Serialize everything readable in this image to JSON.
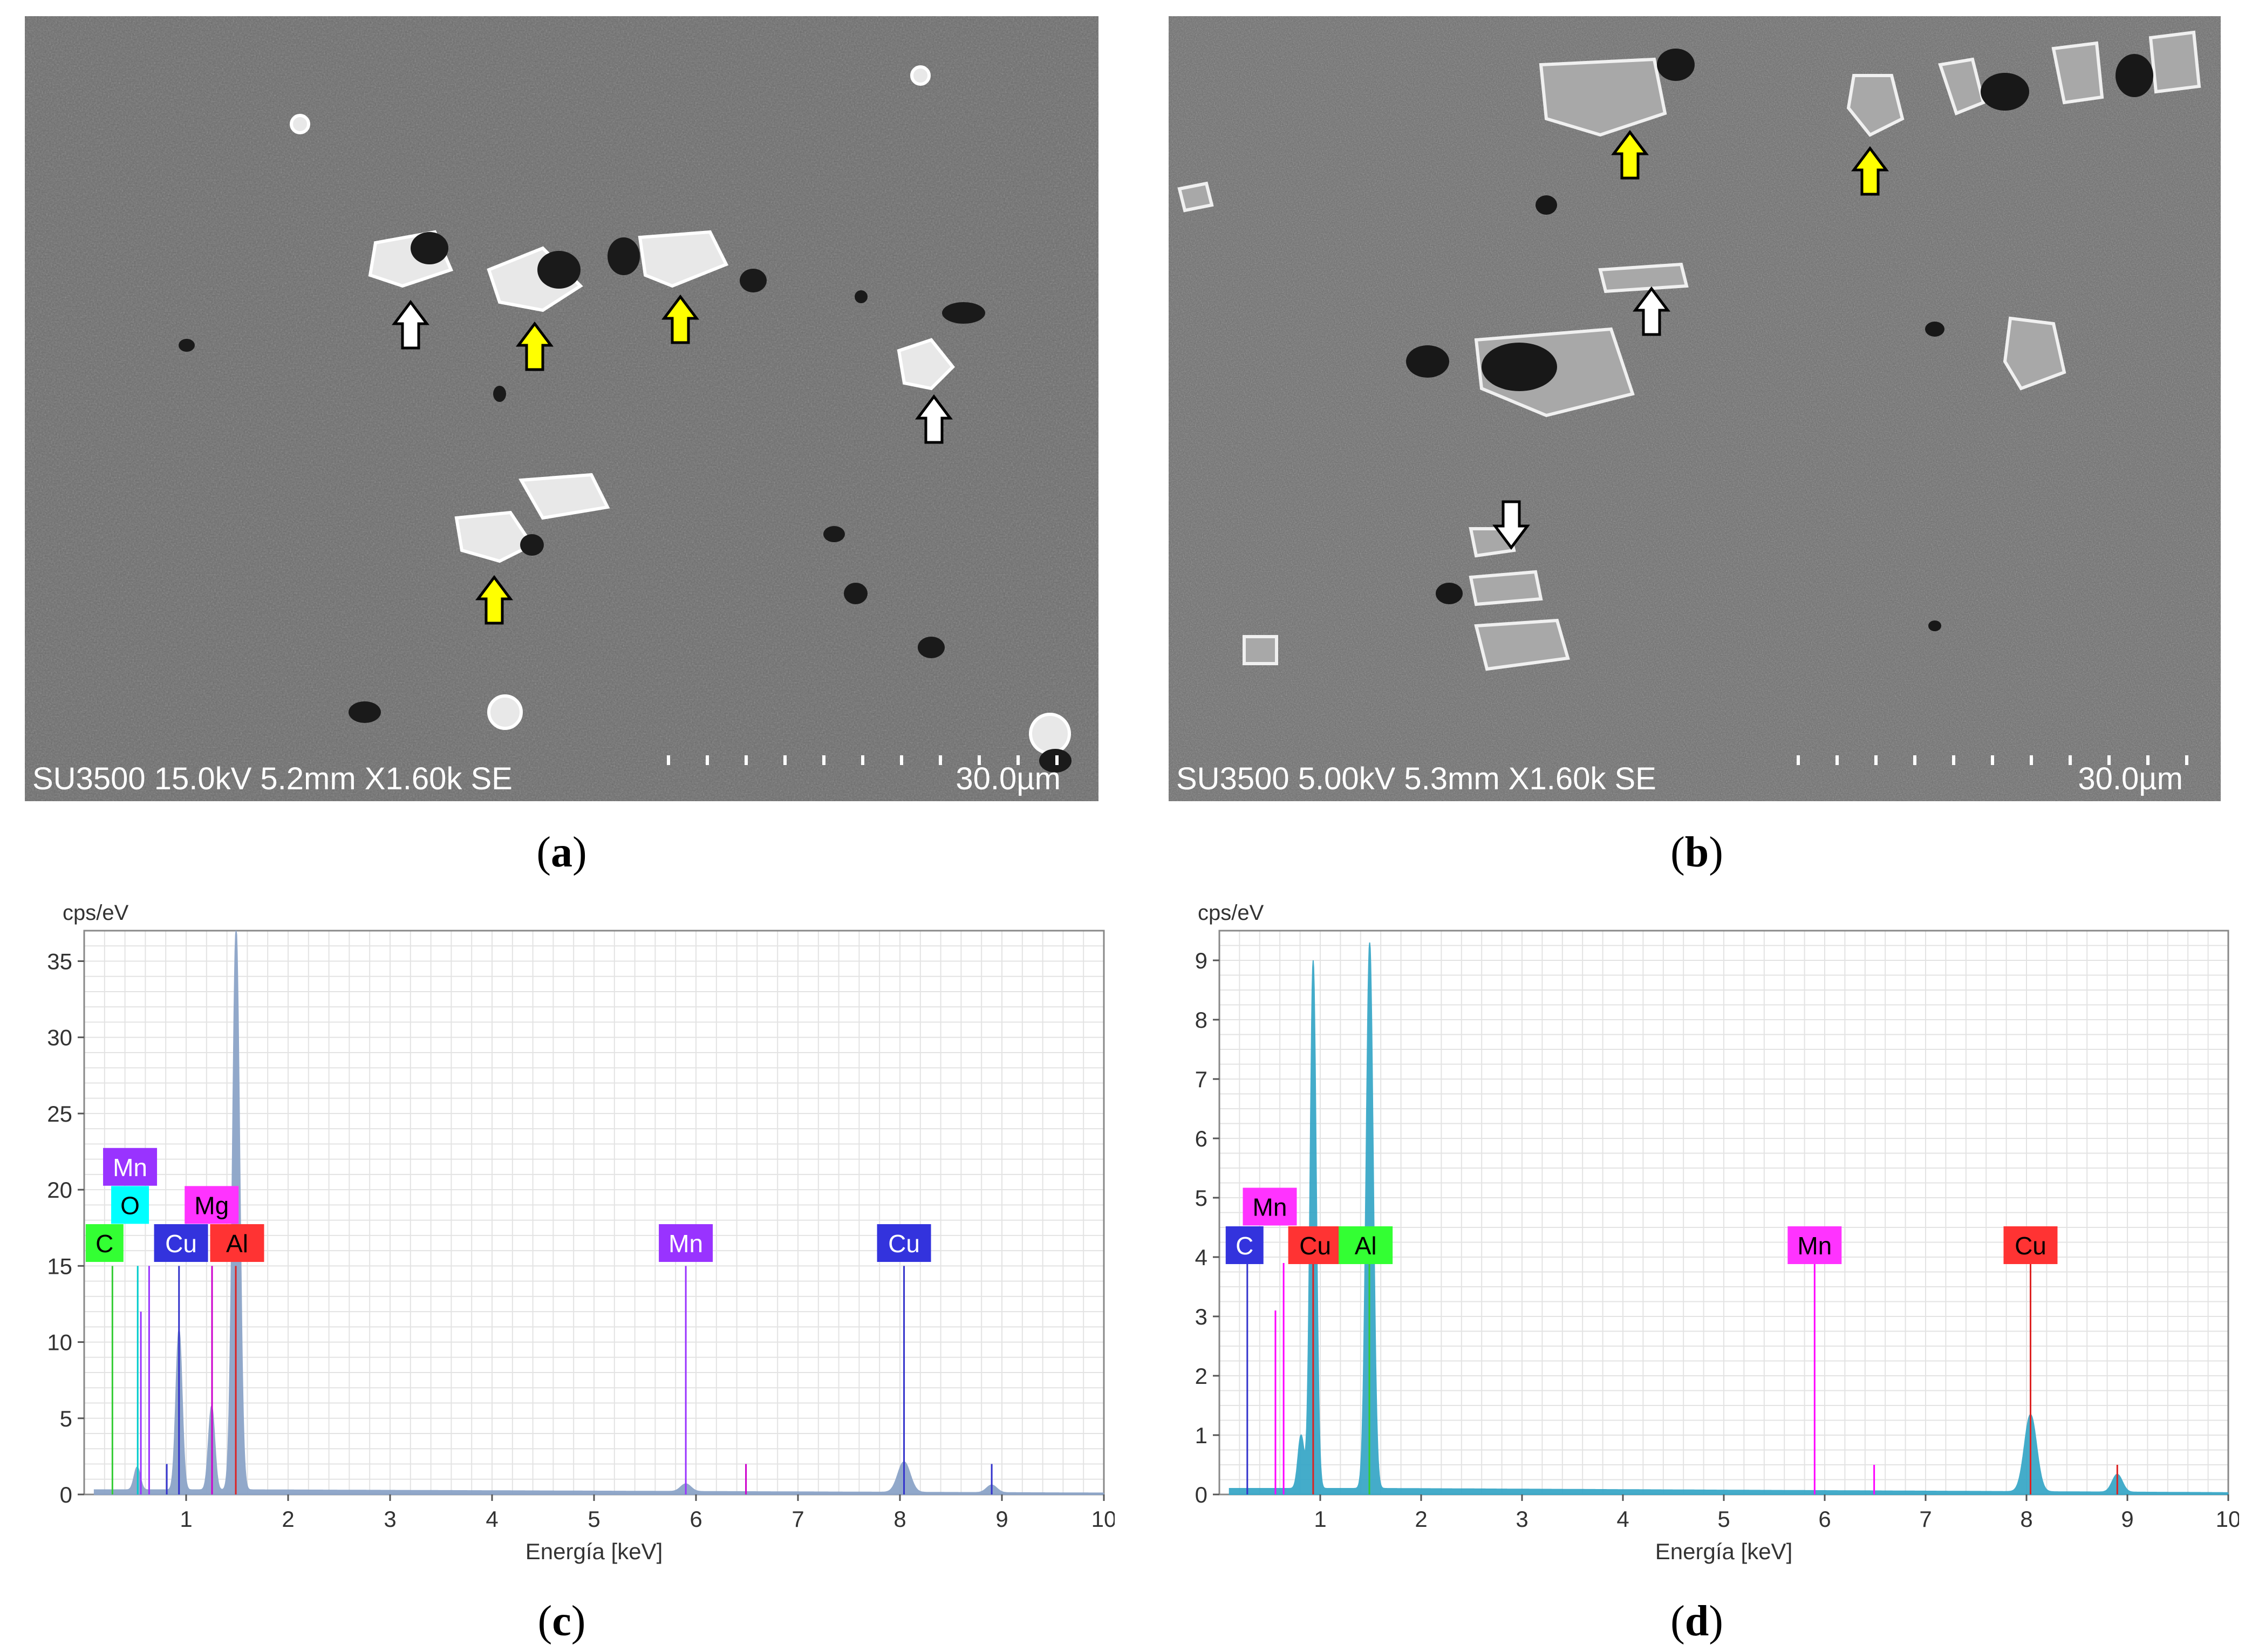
{
  "panels": {
    "a": {
      "caption_open": "(",
      "caption_letter": "a",
      "caption_close": ")",
      "info": "SU3500 15.0kV 5.2mm X1.60k SE",
      "scale": "30.0µm"
    },
    "b": {
      "caption_open": "(",
      "caption_letter": "b",
      "caption_close": ")",
      "info": "SU3500 5.00kV 5.3mm X1.60k SE",
      "scale": "30.0µm"
    },
    "c": {
      "caption_open": "(",
      "caption_letter": "c",
      "caption_close": ")"
    },
    "d": {
      "caption_open": "(",
      "caption_letter": "d",
      "caption_close": ")"
    }
  },
  "colors": {
    "yellow_arrow": "#ffff00",
    "white_arrow": "#ffffff",
    "sem_background": "#6b6b6b",
    "grid": "#e3e3e3",
    "spectrum_c": "#8ca4c8",
    "spectrum_d": "#3aa8c8"
  },
  "chart_data": [
    {
      "type": "line",
      "panel": "c",
      "ylabel": "cps/eV",
      "xlabel": "Energía [keV]",
      "xlim": [
        0,
        10
      ],
      "ylim": [
        0,
        37
      ],
      "xticks": [
        1,
        2,
        3,
        4,
        5,
        6,
        7,
        8,
        9,
        10
      ],
      "yticks": [
        0,
        5,
        10,
        15,
        20,
        25,
        30,
        35
      ],
      "grid": true,
      "fill_color": "#8ca4c8",
      "spectrum_peaks": [
        {
          "x": 0.52,
          "y": 1.5,
          "w": 0.03
        },
        {
          "x": 0.93,
          "y": 10.5,
          "w": 0.03
        },
        {
          "x": 1.25,
          "y": 5.5,
          "w": 0.03
        },
        {
          "x": 1.49,
          "y": 36.8,
          "w": 0.035
        },
        {
          "x": 5.9,
          "y": 0.5,
          "w": 0.05
        },
        {
          "x": 8.04,
          "y": 2.0,
          "w": 0.06
        },
        {
          "x": 8.9,
          "y": 0.5,
          "w": 0.05
        }
      ],
      "background": 0.3,
      "element_lines": [
        {
          "element": "C",
          "x": 0.277,
          "y": 15,
          "color": "#33cc33"
        },
        {
          "element": "O",
          "x": 0.525,
          "y": 15,
          "color": "#00cccc"
        },
        {
          "element": "Mn",
          "x": 0.556,
          "y": 12,
          "color": "#9933ff"
        },
        {
          "element": "Mn",
          "x": 0.637,
          "y": 15,
          "color": "#9933ff"
        },
        {
          "element": "Cu",
          "x": 0.93,
          "y": 15,
          "color": "#3333cc"
        },
        {
          "element": "Cu",
          "x": 0.81,
          "y": 2,
          "color": "#3333cc"
        },
        {
          "element": "Mg",
          "x": 1.254,
          "y": 15,
          "color": "#cc00cc"
        },
        {
          "element": "Al",
          "x": 1.487,
          "y": 15,
          "color": "#dd2222"
        },
        {
          "element": "Mn",
          "x": 5.9,
          "y": 15,
          "color": "#9933ff"
        },
        {
          "element": "Mn",
          "x": 6.49,
          "y": 2,
          "color": "#cc00cc"
        },
        {
          "element": "Cu",
          "x": 8.04,
          "y": 15,
          "color": "#3333cc"
        },
        {
          "element": "Cu",
          "x": 8.9,
          "y": 2,
          "color": "#3333cc"
        }
      ],
      "element_labels": [
        {
          "text": "Mn",
          "x": 0.45,
          "y": 21.5,
          "bg": "#9933ff",
          "fg": "#ffffff"
        },
        {
          "text": "O",
          "x": 0.45,
          "y": 19.0,
          "bg": "#00ffff",
          "fg": "#000000"
        },
        {
          "text": "Mg",
          "x": 1.25,
          "y": 19.0,
          "bg": "#ff33ff",
          "fg": "#000000"
        },
        {
          "text": "C",
          "x": 0.2,
          "y": 16.5,
          "bg": "#33ff33",
          "fg": "#000000"
        },
        {
          "text": "Cu",
          "x": 0.95,
          "y": 16.5,
          "bg": "#3333dd",
          "fg": "#ffffff"
        },
        {
          "text": "Al",
          "x": 1.5,
          "y": 16.5,
          "bg": "#ff3333",
          "fg": "#000000"
        },
        {
          "text": "Mn",
          "x": 5.9,
          "y": 16.5,
          "bg": "#9933ff",
          "fg": "#ffffff"
        },
        {
          "text": "Cu",
          "x": 8.04,
          "y": 16.5,
          "bg": "#3333dd",
          "fg": "#ffffff"
        }
      ]
    },
    {
      "type": "line",
      "panel": "d",
      "ylabel": "cps/eV",
      "xlabel": "Energía [keV]",
      "xlim": [
        0,
        10
      ],
      "ylim": [
        0,
        9.5
      ],
      "xticks": [
        1,
        2,
        3,
        4,
        5,
        6,
        7,
        8,
        9,
        10
      ],
      "yticks": [
        0,
        1,
        2,
        3,
        4,
        5,
        6,
        7,
        8,
        9
      ],
      "grid": true,
      "fill_color": "#3aa8c8",
      "spectrum_peaks": [
        {
          "x": 0.81,
          "y": 0.9,
          "w": 0.03
        },
        {
          "x": 0.93,
          "y": 8.9,
          "w": 0.03
        },
        {
          "x": 1.49,
          "y": 9.2,
          "w": 0.035
        },
        {
          "x": 8.04,
          "y": 1.3,
          "w": 0.06
        },
        {
          "x": 8.9,
          "y": 0.3,
          "w": 0.05
        }
      ],
      "background": 0.1,
      "element_lines": [
        {
          "element": "C",
          "x": 0.277,
          "y": 3.9,
          "color": "#3333cc"
        },
        {
          "element": "Mn",
          "x": 0.556,
          "y": 3.1,
          "color": "#ff00ff"
        },
        {
          "element": "Mn",
          "x": 0.637,
          "y": 3.9,
          "color": "#ff00ff"
        },
        {
          "element": "Cu",
          "x": 0.93,
          "y": 3.9,
          "color": "#dd2222"
        },
        {
          "element": "Al",
          "x": 1.487,
          "y": 3.9,
          "color": "#33cc33"
        },
        {
          "element": "Mn",
          "x": 5.9,
          "y": 3.9,
          "color": "#ff00ff"
        },
        {
          "element": "Mn",
          "x": 6.49,
          "y": 0.5,
          "color": "#ff00ff"
        },
        {
          "element": "Cu",
          "x": 8.04,
          "y": 3.9,
          "color": "#dd2222"
        },
        {
          "element": "Cu",
          "x": 8.9,
          "y": 0.5,
          "color": "#dd2222"
        }
      ],
      "element_labels": [
        {
          "text": "Mn",
          "x": 0.5,
          "y": 4.85,
          "bg": "#ff33ff",
          "fg": "#000000"
        },
        {
          "text": "C",
          "x": 0.25,
          "y": 4.2,
          "bg": "#3333dd",
          "fg": "#ffffff"
        },
        {
          "text": "Cu",
          "x": 0.95,
          "y": 4.2,
          "bg": "#ff3333",
          "fg": "#000000"
        },
        {
          "text": "Al",
          "x": 1.45,
          "y": 4.2,
          "bg": "#33ff33",
          "fg": "#000000"
        },
        {
          "text": "Mn",
          "x": 5.9,
          "y": 4.2,
          "bg": "#ff33ff",
          "fg": "#000000"
        },
        {
          "text": "Cu",
          "x": 8.04,
          "y": 4.2,
          "bg": "#ff3333",
          "fg": "#000000"
        }
      ]
    }
  ]
}
